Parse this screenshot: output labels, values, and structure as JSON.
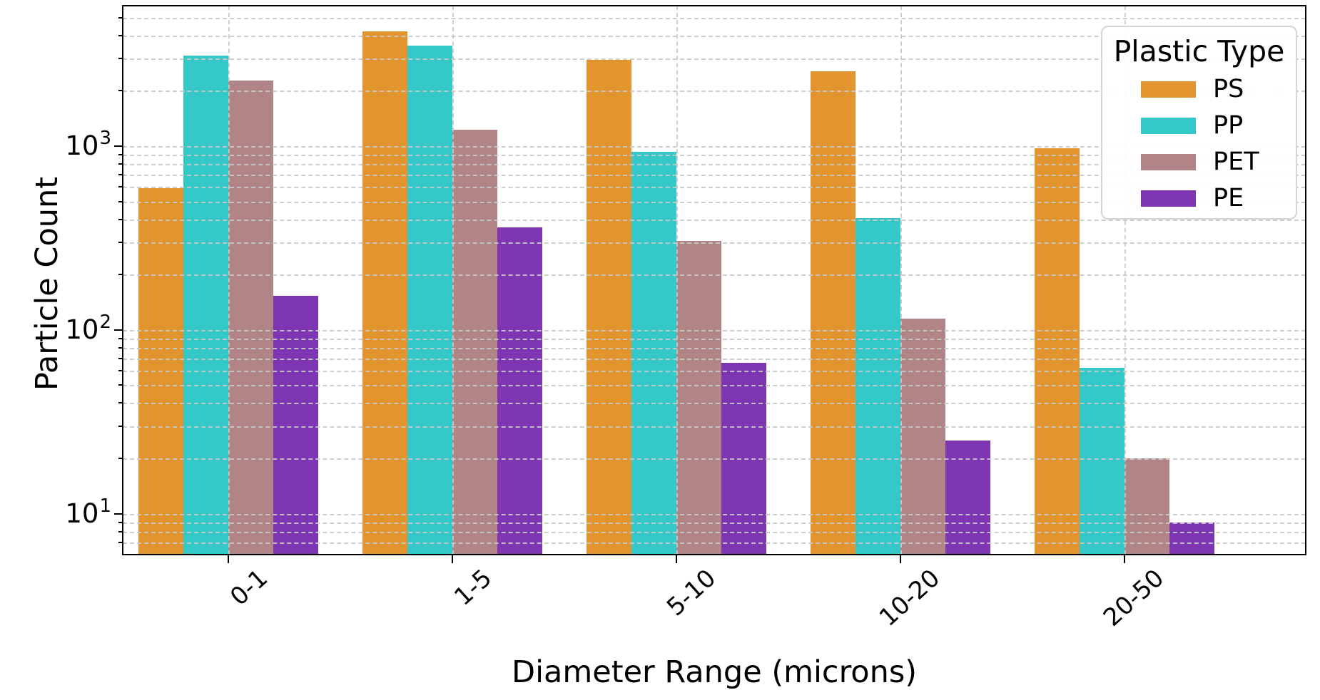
{
  "chart_data": {
    "type": "bar",
    "title": "",
    "xlabel": "Diameter Range (microns)",
    "ylabel": "Particle Count",
    "categories": [
      "0-1",
      "1-5",
      "5-10",
      "10-20",
      "20-50"
    ],
    "series": [
      {
        "name": "PS",
        "color": "#E2952F",
        "values": [
          590,
          4200,
          2950,
          2550,
          970
        ]
      },
      {
        "name": "PP",
        "color": "#35C8C8",
        "values": [
          3100,
          3530,
          930,
          405,
          62
        ]
      },
      {
        "name": "PET",
        "color": "#B18585",
        "values": [
          2280,
          1230,
          305,
          115,
          20
        ]
      },
      {
        "name": "PE",
        "color": "#7D35B2",
        "values": [
          153,
          360,
          66,
          25,
          9
        ]
      }
    ],
    "y_scale": "log",
    "ylim": [
      6,
      5800
    ],
    "y_major_ticks": [
      {
        "base": "10",
        "exp": "1",
        "value": 10
      },
      {
        "base": "10",
        "exp": "2",
        "value": 100
      },
      {
        "base": "10",
        "exp": "3",
        "value": 1000
      }
    ],
    "grid": {
      "style": "dashed",
      "color": "#c9c9c9",
      "horizontal": "major and minor log lines",
      "vertical": "one line per category center"
    },
    "legend": {
      "title": "Plastic Type",
      "position": "upper right",
      "labels": [
        "PS",
        "PP",
        "PET",
        "PE"
      ]
    },
    "bar_group_width": 0.8,
    "x_tick_rotation_deg": 42
  }
}
